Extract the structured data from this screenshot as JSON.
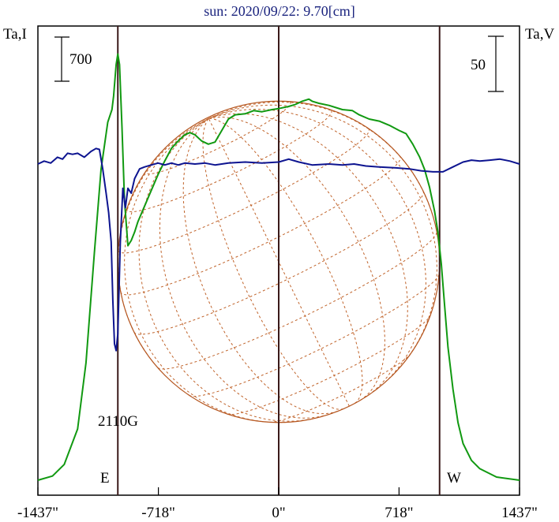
{
  "chart_data": {
    "type": "line",
    "title": "sun: 2020/09/22: 9.70[cm]",
    "ylabel_left": "Ta,I",
    "ylabel_right": "Ta,V",
    "scale_bar_left": "700",
    "scale_bar_right": "50",
    "xlim": [
      -1437,
      1437
    ],
    "x_ticks": [
      -1437,
      -718,
      0,
      718,
      1437
    ],
    "x_tick_labels": [
      "-1437\"",
      "-718\"",
      "0\"",
      "718\"",
      "1437\""
    ],
    "markers": [
      {
        "label": "E",
        "x": -960
      },
      {
        "label": "W",
        "x": 960
      }
    ],
    "annotation": {
      "text": "2110G",
      "x": -960
    },
    "ylim_I": [
      0,
      4150
    ],
    "ylim_V": [
      -24.5,
      15
    ],
    "series": [
      {
        "key": "I",
        "color": "#119911",
        "points": [
          [
            -1437,
            30
          ],
          [
            -1350,
            70
          ],
          [
            -1280,
            180
          ],
          [
            -1200,
            520
          ],
          [
            -1150,
            1150
          ],
          [
            -1100,
            2200
          ],
          [
            -1060,
            3000
          ],
          [
            -1020,
            3450
          ],
          [
            -995,
            3570
          ],
          [
            -985,
            3700
          ],
          [
            -970,
            4000
          ],
          [
            -960,
            4100
          ],
          [
            -950,
            4000
          ],
          [
            -935,
            3400
          ],
          [
            -920,
            2700
          ],
          [
            -900,
            2270
          ],
          [
            -880,
            2320
          ],
          [
            -860,
            2400
          ],
          [
            -840,
            2500
          ],
          [
            -800,
            2650
          ],
          [
            -760,
            2800
          ],
          [
            -720,
            2950
          ],
          [
            -680,
            3080
          ],
          [
            -640,
            3200
          ],
          [
            -600,
            3270
          ],
          [
            -560,
            3330
          ],
          [
            -530,
            3350
          ],
          [
            -500,
            3330
          ],
          [
            -460,
            3270
          ],
          [
            -420,
            3240
          ],
          [
            -380,
            3260
          ],
          [
            -340,
            3370
          ],
          [
            -300,
            3480
          ],
          [
            -260,
            3520
          ],
          [
            -200,
            3530
          ],
          [
            -150,
            3560
          ],
          [
            -100,
            3550
          ],
          [
            -40,
            3570
          ],
          [
            0,
            3580
          ],
          [
            60,
            3600
          ],
          [
            100,
            3620
          ],
          [
            140,
            3650
          ],
          [
            180,
            3670
          ],
          [
            200,
            3650
          ],
          [
            240,
            3630
          ],
          [
            300,
            3610
          ],
          [
            380,
            3570
          ],
          [
            440,
            3560
          ],
          [
            480,
            3520
          ],
          [
            540,
            3480
          ],
          [
            600,
            3460
          ],
          [
            660,
            3420
          ],
          [
            720,
            3370
          ],
          [
            760,
            3340
          ],
          [
            800,
            3240
          ],
          [
            840,
            3120
          ],
          [
            870,
            3000
          ],
          [
            900,
            2830
          ],
          [
            930,
            2600
          ],
          [
            950,
            2400
          ],
          [
            970,
            2100
          ],
          [
            990,
            1700
          ],
          [
            1010,
            1300
          ],
          [
            1040,
            900
          ],
          [
            1070,
            580
          ],
          [
            1100,
            380
          ],
          [
            1150,
            220
          ],
          [
            1200,
            140
          ],
          [
            1300,
            60
          ],
          [
            1437,
            30
          ]
        ]
      },
      {
        "key": "V",
        "color": "#0d1490",
        "points": [
          [
            -1437,
            0.0
          ],
          [
            -1400,
            0.3
          ],
          [
            -1360,
            0.1
          ],
          [
            -1320,
            0.7
          ],
          [
            -1290,
            0.5
          ],
          [
            -1260,
            1.1
          ],
          [
            -1230,
            1.0
          ],
          [
            -1200,
            1.1
          ],
          [
            -1160,
            0.7
          ],
          [
            -1120,
            1.3
          ],
          [
            -1090,
            1.6
          ],
          [
            -1070,
            1.5
          ],
          [
            -1050,
            -0.5
          ],
          [
            -1030,
            -3.0
          ],
          [
            -1015,
            -5.0
          ],
          [
            -1000,
            -8.0
          ],
          [
            -990,
            -14.0
          ],
          [
            -980,
            -18.5
          ],
          [
            -970,
            -19.2
          ],
          [
            -960,
            -17.5
          ],
          [
            -945,
            -8.0
          ],
          [
            -930,
            -2.5
          ],
          [
            -915,
            -4.5
          ],
          [
            -900,
            -2.5
          ],
          [
            -880,
            -3.0
          ],
          [
            -860,
            -1.5
          ],
          [
            -830,
            -0.5
          ],
          [
            -800,
            -0.3
          ],
          [
            -760,
            -0.1
          ],
          [
            -720,
            0.1
          ],
          [
            -680,
            -0.1
          ],
          [
            -640,
            0.1
          ],
          [
            -600,
            -0.1
          ],
          [
            -560,
            0.1
          ],
          [
            -500,
            0.0
          ],
          [
            -440,
            0.1
          ],
          [
            -380,
            -0.1
          ],
          [
            -300,
            0.1
          ],
          [
            -200,
            0.2
          ],
          [
            -100,
            0.1
          ],
          [
            0,
            0.2
          ],
          [
            60,
            0.5
          ],
          [
            120,
            0.2
          ],
          [
            200,
            -0.1
          ],
          [
            300,
            0.0
          ],
          [
            380,
            -0.1
          ],
          [
            450,
            0.0
          ],
          [
            520,
            -0.2
          ],
          [
            600,
            -0.3
          ],
          [
            700,
            -0.4
          ],
          [
            780,
            -0.5
          ],
          [
            850,
            -0.7
          ],
          [
            920,
            -0.8
          ],
          [
            980,
            -0.8
          ],
          [
            1040,
            -0.3
          ],
          [
            1100,
            0.2
          ],
          [
            1150,
            0.4
          ],
          [
            1200,
            0.3
          ],
          [
            1260,
            0.4
          ],
          [
            1320,
            0.5
          ],
          [
            1380,
            0.3
          ],
          [
            1437,
            0.0
          ]
        ]
      }
    ]
  }
}
